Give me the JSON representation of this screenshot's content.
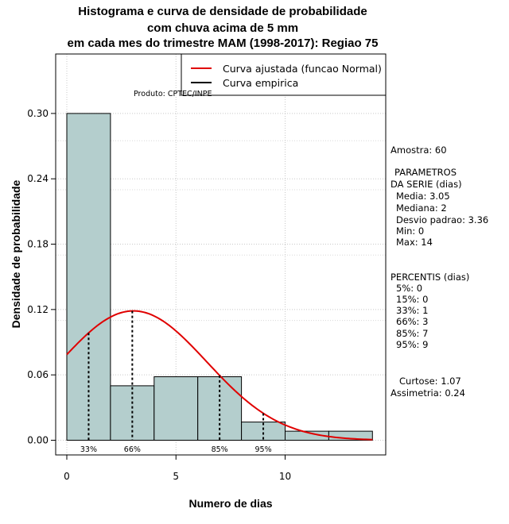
{
  "title_lines": [
    "Histograma e curva de densidade de probabilidade",
    "com chuva acima de 5 mm",
    "em cada mes do trimestre MAM (1998-2017): Regiao 75"
  ],
  "credit": "Produto: CPTEC/INPE",
  "legend": {
    "fitted": "Curva ajustada (funcao Normal)",
    "empirical": "Curva empirica"
  },
  "colors": {
    "bar_fill": "#b4cecd",
    "fitted": "#e00000",
    "empirical": "#000000"
  },
  "stats": {
    "amostra": "Amostra: 60",
    "param_title_1": "PARAMETROS",
    "param_title_2": "DA SERIE (dias)",
    "media": "Media: 3.05",
    "mediana": "Mediana: 2",
    "desvio": "Desvio padrao: 3.36",
    "min": "Min: 0",
    "max": "Max: 14",
    "perc_title": "PERCENTIS (dias)",
    "p5": "5%: 0",
    "p15": "15%: 0",
    "p33": "33%: 1",
    "p66": "66%: 3",
    "p85": "85%: 7",
    "p95": "95%: 9",
    "curtose": "Curtose: 1.07",
    "assimetria": "Assimetria: 0.24"
  },
  "chart_data": {
    "type": "bar",
    "xlabel": "Numero de dias",
    "ylabel": "Densidade de probabilidade",
    "xlim": [
      -1,
      14.5
    ],
    "ylim": [
      0,
      0.34
    ],
    "x_ticks": [
      0,
      5,
      10
    ],
    "y_ticks": [
      0.0,
      0.06,
      0.12,
      0.18,
      0.24,
      0.3
    ],
    "y_tick_labels": [
      "0.00",
      "0.06",
      "0.12",
      "0.18",
      "0.24",
      "0.30"
    ],
    "bins": [
      {
        "from": 0,
        "to": 2,
        "density": 0.3
      },
      {
        "from": 2,
        "to": 4,
        "density": 0.05
      },
      {
        "from": 4,
        "to": 6,
        "density": 0.0583
      },
      {
        "from": 6,
        "to": 8,
        "density": 0.0583
      },
      {
        "from": 8,
        "to": 10,
        "density": 0.0167
      },
      {
        "from": 10,
        "to": 12,
        "density": 0.0083
      },
      {
        "from": 12,
        "to": 14,
        "density": 0.0083
      }
    ],
    "normal_fit": {
      "mean": 3.05,
      "sd": 3.36,
      "x_from": 0,
      "x_to": 14
    },
    "percentile_markers": [
      {
        "x": 1,
        "label": "33%"
      },
      {
        "x": 3,
        "label": "66%"
      },
      {
        "x": 7,
        "label": "85%"
      },
      {
        "x": 9,
        "label": "95%"
      }
    ]
  }
}
